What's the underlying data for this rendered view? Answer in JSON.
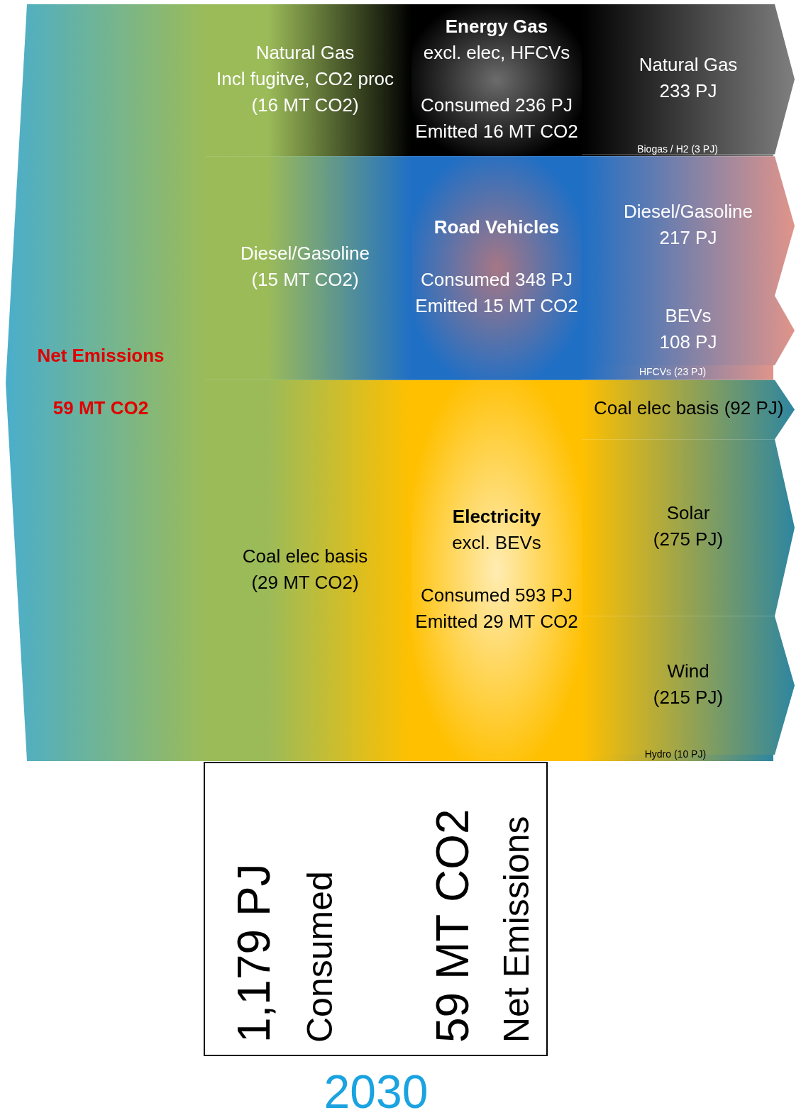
{
  "chart_data": {
    "type": "other",
    "title": "2030",
    "categories": [
      "Natural Gas",
      "Biogas / H2",
      "Diesel/Gasoline",
      "BEVs",
      "HFCVs",
      "Coal elec basis",
      "Solar",
      "Wind",
      "Hydro"
    ],
    "colors": [
      "#7f7f7f",
      "#7f7f7f",
      "#e0948a",
      "#e0948a",
      "#e0948a",
      "#2e86a0",
      "#2e86a0",
      "#2e86a0",
      "#2e86a0"
    ],
    "series": [
      {
        "name": "Energy Gas",
        "color": "#000000",
        "values": [
          233,
          3,
          null,
          null,
          null,
          null,
          null,
          null,
          null
        ],
        "value_labels": [
          "233 PJ",
          "(3 PJ)",
          null,
          null,
          null,
          null,
          null,
          null,
          null
        ]
      },
      {
        "name": "Road Vehicles",
        "color": "#1f6fc5",
        "values": [
          null,
          null,
          217,
          108,
          23,
          null,
          null,
          null,
          null
        ],
        "value_labels": [
          null,
          null,
          "217 PJ",
          "108 PJ",
          "(23 PJ)",
          null,
          null,
          null,
          null
        ]
      },
      {
        "name": "Electricity",
        "color": "#ffc000",
        "values": [
          null,
          null,
          null,
          null,
          null,
          92,
          275,
          215,
          10
        ],
        "value_labels": [
          null,
          null,
          null,
          null,
          null,
          "(92 PJ)",
          "(275 PJ)",
          "(215 PJ)",
          "(10 PJ)"
        ]
      }
    ],
    "annotations": [
      "Natural Gas\nIncl fugitve, CO2 proc\n(16 MT CO2)",
      "excl. elec, HFCVs\n\nConsumed 236 PJ\nEmitted 16 MT CO2",
      "Diesel/Gasoline\n(15 MT CO2)",
      "\nConsumed 348 PJ\nEmitted 15 MT CO2",
      "Coal elec basis\n(29 MT CO2)",
      "excl. BEVs\n\nConsumed 593 PJ\nEmitted 29 MT CO2",
      "Net Emissions\n\n59 MT CO2",
      "1,179 PJ\nConsumed",
      "59 MT CO2\nNet Emissions"
    ]
  }
}
